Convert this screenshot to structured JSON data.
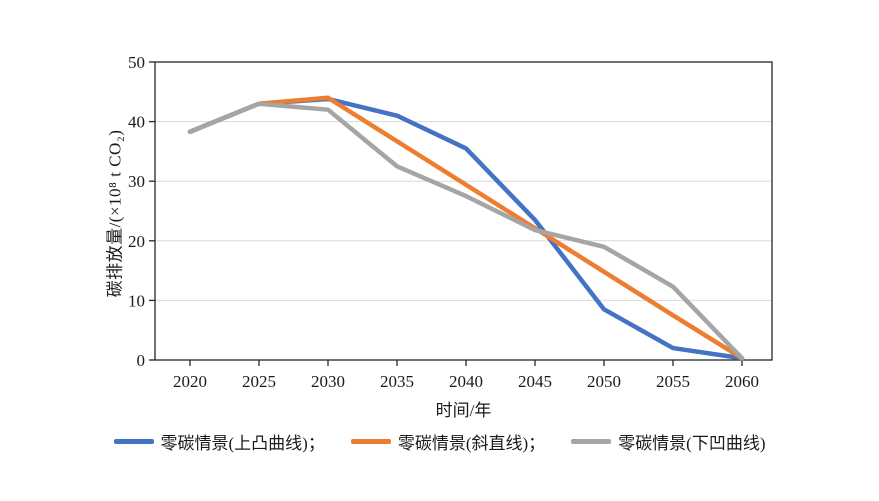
{
  "chart_data": {
    "type": "line",
    "title": "",
    "xlabel": "时间/年",
    "ylabel": "碳排放量/(×10⁸ t CO₂)",
    "x": [
      2020,
      2025,
      2030,
      2035,
      2040,
      2045,
      2050,
      2055,
      2060
    ],
    "ylim": [
      0,
      50
    ],
    "yticks": [
      0,
      10,
      20,
      30,
      40,
      50
    ],
    "grid": true,
    "legend_position": "bottom",
    "colors": {
      "axis": "#262626",
      "gridline": "#d9d9d9",
      "text": "#1a1a1a",
      "background": "#ffffff"
    },
    "series": [
      {
        "label": "零碳情景(上凸曲线)；",
        "color": "#4472C4",
        "values": [
          38.3,
          43,
          43.8,
          41,
          35.5,
          23.5,
          8.5,
          2,
          0.3
        ]
      },
      {
        "label": "零碳情景(斜直线)；",
        "color": "#ED7D31",
        "values": [
          38.3,
          43,
          44,
          36.7,
          29.4,
          22.1,
          14.8,
          7.5,
          0.3
        ]
      },
      {
        "label": "零碳情景(下凹曲线)",
        "color": "#A5A5A5",
        "values": [
          38.3,
          43,
          42,
          32.5,
          27.5,
          21.8,
          19,
          12.3,
          0.3
        ]
      }
    ]
  }
}
